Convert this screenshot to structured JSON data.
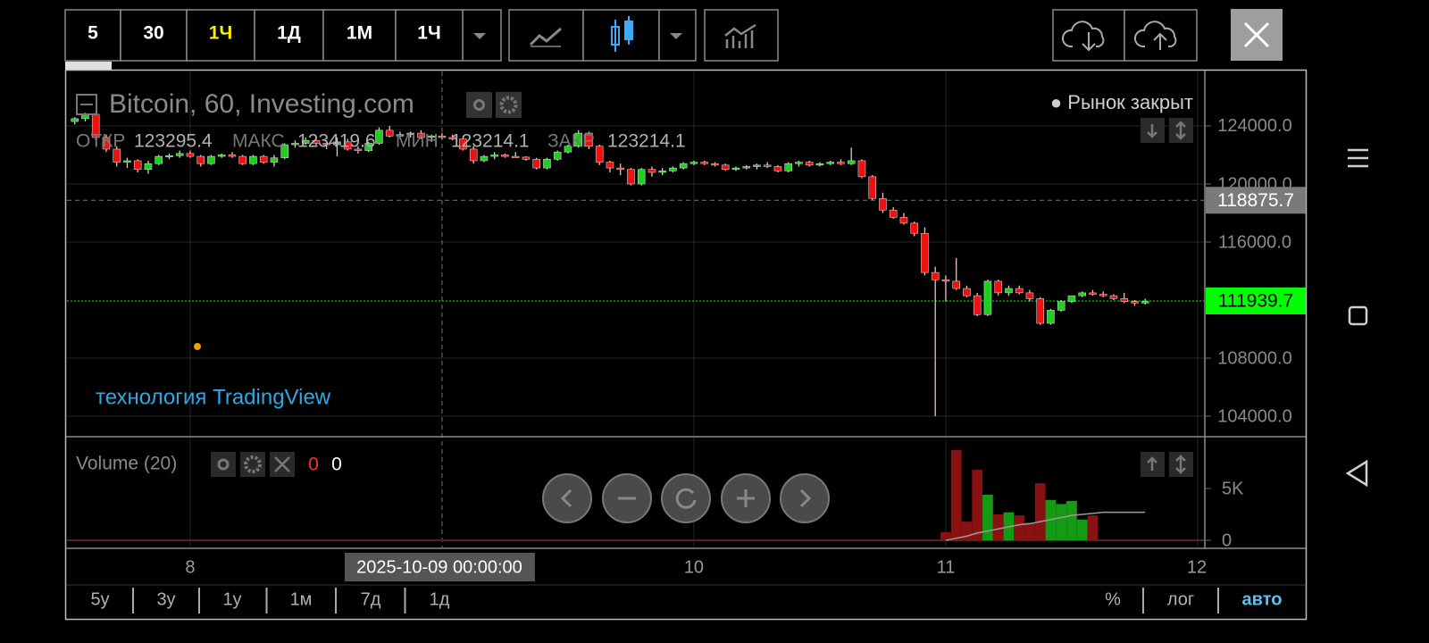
{
  "toolbar": {
    "intervals": [
      "5",
      "30",
      "1Ч",
      "1Д",
      "1М",
      "1Ч"
    ]
  },
  "chart_data": [
    {
      "type": "candlestick",
      "title": "Bitcoin, 60, Investing.com",
      "status": "● Рынок закрыт",
      "legend_fields": [
        {
          "label": "ОТКР",
          "value": 123295.4
        },
        {
          "label": "МАКС",
          "value": 123419.6
        },
        {
          "label": "МИН",
          "value": 123214.1
        },
        {
          "label": "ЗАКР",
          "value": 123214.1
        }
      ],
      "watermark": "технология TradingView",
      "up_color": "#19d219",
      "down_color": "#f01010",
      "xlim": [
        -11.74,
        96.6
      ],
      "xticks": [
        {
          "value": 0,
          "label": "8"
        },
        {
          "value": 48,
          "label": "10"
        },
        {
          "value": 72,
          "label": "11"
        },
        {
          "value": 96,
          "label": "12"
        }
      ],
      "ylim": [
        102650,
        127750
      ],
      "yticks": [
        {
          "value": 104000,
          "label": "104000.0"
        },
        {
          "value": 108000,
          "label": "108000.0"
        },
        {
          "value": 116000,
          "label": "116000.0"
        },
        {
          "value": 120000,
          "label": "120000.0"
        },
        {
          "value": 124000,
          "label": "124000.0"
        }
      ],
      "grid": true,
      "price_lines": [
        {
          "value": 118875.7,
          "color": "#7a7a7a",
          "text_color": "#ffffff",
          "dashed": true
        },
        {
          "value": 111939.7,
          "color": "#00ff00",
          "text_color": "#000000",
          "dashed": false
        }
      ],
      "crosshair": {
        "x": 24,
        "label": "2025-10-09 00:00:00"
      },
      "x": [
        -11,
        -10,
        -9,
        -8,
        -7,
        -6,
        -5,
        -4,
        -3,
        -2,
        -1,
        0,
        1,
        2,
        3,
        4,
        5,
        6,
        7,
        8,
        9,
        10,
        11,
        12,
        13,
        14,
        15,
        16,
        17,
        18,
        19,
        20,
        21,
        22,
        23,
        24,
        25,
        26,
        27,
        28,
        29,
        30,
        31,
        32,
        33,
        34,
        35,
        36,
        37,
        38,
        39,
        40,
        41,
        42,
        43,
        44,
        45,
        46,
        47,
        48,
        49,
        50,
        51,
        52,
        53,
        54,
        55,
        56,
        57,
        58,
        59,
        60,
        61,
        62,
        63,
        64,
        65,
        66,
        67,
        68,
        69,
        70,
        71,
        72,
        73,
        74,
        75,
        76,
        77,
        78,
        79,
        80,
        81,
        82,
        83,
        84,
        85,
        86,
        87,
        88,
        89,
        90,
        91
      ],
      "ohlc": [
        [
          124300,
          124600,
          124100,
          124500
        ],
        [
          124500,
          124900,
          124300,
          124800
        ],
        [
          124800,
          124900,
          123000,
          123200
        ],
        [
          123200,
          123400,
          122200,
          122400
        ],
        [
          122400,
          122600,
          121200,
          121500
        ],
        [
          121500,
          121800,
          121100,
          121600
        ],
        [
          121600,
          121700,
          120800,
          121000
        ],
        [
          121000,
          121600,
          120700,
          121400
        ],
        [
          121400,
          122000,
          121300,
          121900
        ],
        [
          121900,
          122100,
          121700,
          121950
        ],
        [
          121950,
          122300,
          121800,
          122100
        ],
        [
          122100,
          122300,
          121800,
          121900
        ],
        [
          121900,
          122000,
          121200,
          121400
        ],
        [
          121400,
          122000,
          121300,
          121900
        ],
        [
          121900,
          122100,
          121800,
          122000
        ],
        [
          122000,
          122200,
          121800,
          121900
        ],
        [
          121900,
          122000,
          121300,
          121400
        ],
        [
          121400,
          122000,
          121300,
          121900
        ],
        [
          121900,
          122000,
          121400,
          121500
        ],
        [
          121500,
          122000,
          121200,
          121800
        ],
        [
          121800,
          122800,
          121700,
          122700
        ],
        [
          122700,
          123000,
          122500,
          122800
        ],
        [
          122800,
          123200,
          122700,
          123000
        ],
        [
          123000,
          123100,
          122600,
          122800
        ],
        [
          122800,
          123000,
          122400,
          122700
        ],
        [
          122700,
          123200,
          121900,
          122900
        ],
        [
          122900,
          123100,
          122300,
          122400
        ],
        [
          122400,
          122600,
          122100,
          122300
        ],
        [
          122300,
          122900,
          122200,
          122800
        ],
        [
          122800,
          123900,
          122700,
          123700
        ],
        [
          123700,
          124000,
          123200,
          123300
        ],
        [
          123300,
          123600,
          123100,
          123400
        ],
        [
          123400,
          123600,
          123200,
          123500
        ],
        [
          123500,
          123700,
          123100,
          123200
        ],
        [
          123200,
          123400,
          122900,
          123300
        ],
        [
          123300,
          123500,
          123100,
          123200
        ],
        [
          123200,
          123400,
          123000,
          123100
        ],
        [
          123100,
          123300,
          122300,
          122400
        ],
        [
          122400,
          122600,
          121400,
          121600
        ],
        [
          121600,
          122000,
          121500,
          121900
        ],
        [
          121900,
          122200,
          121700,
          122000
        ],
        [
          122000,
          122100,
          121800,
          121900
        ],
        [
          121900,
          122200,
          121800,
          121850
        ],
        [
          121850,
          121900,
          121600,
          121700
        ],
        [
          121700,
          121800,
          121000,
          121100
        ],
        [
          121100,
          121800,
          121000,
          121700
        ],
        [
          121700,
          122300,
          121600,
          122200
        ],
        [
          122200,
          122700,
          122100,
          122600
        ],
        [
          122600,
          123700,
          122500,
          123500
        ],
        [
          123500,
          123600,
          122400,
          122600
        ],
        [
          122600,
          122700,
          121300,
          121500
        ],
        [
          121500,
          121600,
          120800,
          121100
        ],
        [
          121100,
          121400,
          120600,
          121000
        ],
        [
          121000,
          121100,
          119900,
          120000
        ],
        [
          120000,
          121100,
          119900,
          121000
        ],
        [
          121000,
          121200,
          120500,
          120800
        ],
        [
          120800,
          121100,
          120600,
          120900
        ],
        [
          120900,
          121200,
          120800,
          121100
        ],
        [
          121100,
          121500,
          121000,
          121400
        ],
        [
          121400,
          121600,
          121300,
          121500
        ],
        [
          121500,
          121600,
          121300,
          121400
        ],
        [
          121400,
          121500,
          121200,
          121300
        ],
        [
          121300,
          121400,
          120900,
          121000
        ],
        [
          121000,
          121200,
          120900,
          121100
        ],
        [
          121100,
          121300,
          121000,
          121200
        ],
        [
          121200,
          121400,
          121000,
          121300
        ],
        [
          121300,
          121500,
          121100,
          121200
        ],
        [
          121200,
          121300,
          120800,
          120900
        ],
        [
          120900,
          121500,
          120800,
          121400
        ],
        [
          121400,
          121600,
          121200,
          121500
        ],
        [
          121500,
          121600,
          121200,
          121300
        ],
        [
          121300,
          121500,
          121200,
          121400
        ],
        [
          121400,
          121600,
          121300,
          121500
        ],
        [
          121500,
          121700,
          121300,
          121400
        ],
        [
          121400,
          122500,
          121300,
          121600
        ],
        [
          121600,
          121700,
          120400,
          120500
        ],
        [
          120500,
          120600,
          118900,
          119000
        ],
        [
          119000,
          119400,
          118000,
          118200
        ],
        [
          118200,
          118400,
          117600,
          117700
        ],
        [
          117700,
          118000,
          117200,
          117300
        ],
        [
          117300,
          117400,
          116400,
          116600
        ],
        [
          116600,
          117000,
          113700,
          113900
        ],
        [
          113900,
          114300,
          104000,
          113400
        ],
        [
          113400,
          113700,
          111900,
          113300
        ],
        [
          113300,
          114900,
          112700,
          112800
        ],
        [
          112800,
          113000,
          112200,
          112300
        ],
        [
          112300,
          112500,
          110900,
          111000
        ],
        [
          111000,
          113400,
          110900,
          113300
        ],
        [
          113300,
          113400,
          112300,
          112500
        ],
        [
          112500,
          113000,
          112300,
          112800
        ],
        [
          112800,
          113000,
          112400,
          112500
        ],
        [
          112500,
          112700,
          111900,
          112100
        ],
        [
          112100,
          112200,
          110300,
          110400
        ],
        [
          110400,
          111400,
          110300,
          111300
        ],
        [
          111300,
          112000,
          111200,
          111900
        ],
        [
          111900,
          112300,
          111800,
          112300
        ],
        [
          112300,
          112600,
          112200,
          112500
        ],
        [
          112500,
          112700,
          112300,
          112400
        ],
        [
          112400,
          112600,
          112200,
          112300
        ],
        [
          112300,
          112400,
          112000,
          112100
        ],
        [
          112100,
          112500,
          111800,
          111900
        ],
        [
          111900,
          112000,
          111600,
          111800
        ],
        [
          111800,
          112100,
          111700,
          111900
        ]
      ]
    },
    {
      "type": "bar",
      "title": "Volume (20)",
      "readouts": [
        0,
        0
      ],
      "up_color": "#159a15",
      "down_color": "#8a1111",
      "ylim": [
        0,
        9650
      ],
      "yticks": [
        0,
        {
          "value": 5000,
          "label": "5K"
        }
      ],
      "x": [
        72,
        73,
        74,
        75,
        76,
        77,
        78,
        79,
        80,
        81,
        82,
        83,
        84,
        85,
        86
      ],
      "values": [
        800,
        8700,
        1800,
        6800,
        4400,
        2500,
        2700,
        2400,
        1700,
        5500,
        3900,
        3500,
        3800,
        2000,
        2400
      ],
      "ma": {
        "color": "#9a9a9a",
        "x": [
          72,
          73,
          74,
          75,
          76,
          77,
          78,
          79,
          80,
          81,
          82,
          83,
          84,
          85,
          86,
          87,
          88,
          89,
          90,
          91
        ],
        "values": [
          0,
          200,
          400,
          700,
          900,
          1100,
          1300,
          1500,
          1600,
          1800,
          2000,
          2200,
          2400,
          2500,
          2600,
          2700,
          2700,
          2700,
          2700,
          2700
        ]
      }
    }
  ],
  "ranges": [
    "5у",
    "3у",
    "1у",
    "1м",
    "7д",
    "1д"
  ],
  "scale_options": [
    "%",
    "лог",
    "авто"
  ]
}
